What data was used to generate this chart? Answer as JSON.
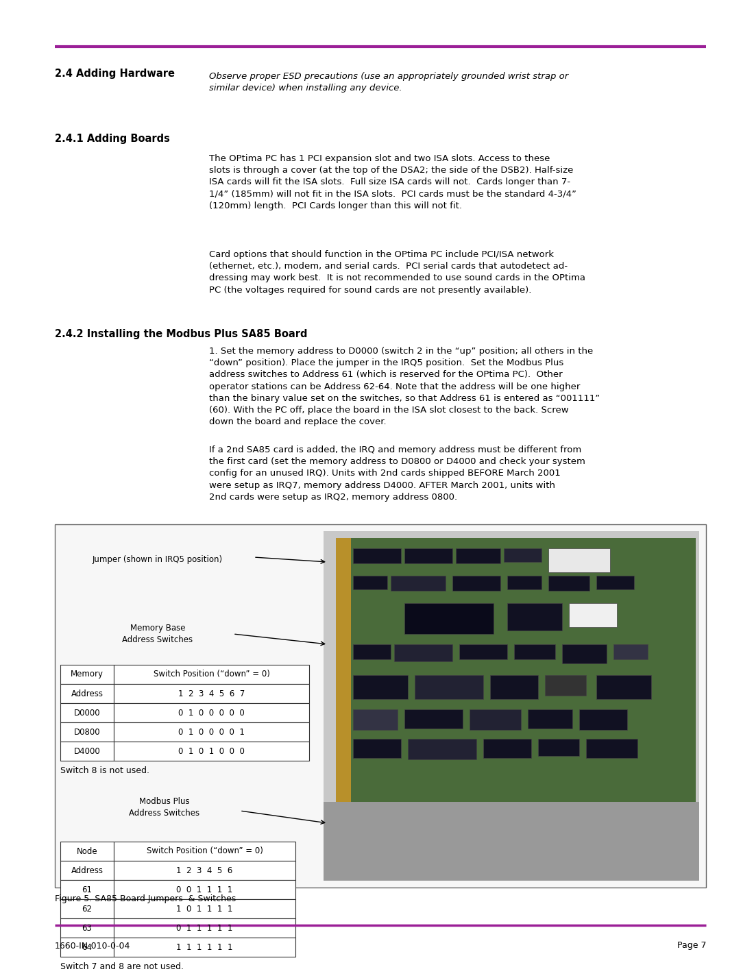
{
  "page_bg": "#ffffff",
  "accent_color": "#9B1F97",
  "section_2_4_title": "2.4 Adding Hardware",
  "section_2_4_italic": "Observe proper ESD precautions (use an appropriately grounded wrist strap or\nsimilar device) when installing any device.",
  "section_2_4_1_title": "2.4.1 Adding Boards",
  "section_2_4_1_para1": "The OPtima PC has 1 PCI expansion slot and two ISA slots. Access to these\nslots is through a cover (at the top of the DSA2; the side of the DSB2). Half-size\nISA cards will fit the ISA slots.  Full size ISA cards will not.  Cards longer than 7-\n1/4” (185mm) will not fit in the ISA slots.  PCI cards must be the standard 4-3/4”\n(120mm) length.  PCI Cards longer than this will not fit.",
  "section_2_4_1_para2": "Card options that should function in the OPtima PC include PCI/ISA network\n(ethernet, etc.), modem, and serial cards.  PCI serial cards that autodetect ad-\ndressing may work best.  It is not recommended to use sound cards in the OPtima\nPC (the voltages required for sound cards are not presently available).",
  "section_2_4_2_title": "2.4.2 Installing the Modbus Plus SA85 Board",
  "section_2_4_2_para1": "1. Set the memory address to D0000 (switch 2 in the “up” position; all others in the\n“down” position). Place the jumper in the IRQ5 position.  Set the Modbus Plus\naddress switches to Address 61 (which is reserved for the OPtima PC).  Other\noperator stations can be Address 62-64. Note that the address will be one higher\nthan the binary value set on the switches, so that Address 61 is entered as “001111”\n(60). With the PC off, place the board in the ISA slot closest to the back. Screw\ndown the board and replace the cover.",
  "section_2_4_2_para2": "If a 2nd SA85 card is added, the IRQ and memory address must be different from\nthe first card (set the memory address to D0800 or D4000 and check your system\nconfig for an unused IRQ). Units with 2nd cards shipped BEFORE March 2001\nwere setup as IRQ7, memory address D4000. AFTER March 2001, units with\n2nd cards were setup as IRQ2, memory address 0800.",
  "footer_left": "1660-IN-010-0-04",
  "footer_right": "Page 7",
  "figure_caption": "Figure 5. SA85 Board Jumpers  & Switches",
  "mem_table_header1": "Memory",
  "mem_table_header2": "Address",
  "mem_table_col_header": "Switch Position (“down” = 0)",
  "mem_table_col_nums": "1  2  3  4  5  6  7",
  "mem_table_rows": [
    [
      "D0000",
      "0  1  0  0  0  0  0"
    ],
    [
      "D0800",
      "0  1  0  0  0  0  1"
    ],
    [
      "D4000",
      "0  1  0  1  0  0  0"
    ]
  ],
  "mem_switch_note": "Switch 8 is not used.",
  "node_table_header1": "Node",
  "node_table_header2": "Address",
  "node_table_col_header": "Switch Position (“down” = 0)",
  "node_table_col_nums": "1  2  3  4  5  6",
  "node_table_rows": [
    [
      "61",
      "0  0  1  1  1  1"
    ],
    [
      "62",
      "1  0  1  1  1  1"
    ],
    [
      "63",
      "0  1  1  1  1  1"
    ],
    [
      "64",
      "1  1  1  1  1  1"
    ]
  ],
  "node_switch_note": "Switch 7 and 8 are not used.",
  "jumper_label": "Jumper (shown in IRQ5 position)",
  "mem_switches_label": "Memory Base\nAddress Switches",
  "modbus_switches_label": "Modbus Plus\nAddress Switches"
}
